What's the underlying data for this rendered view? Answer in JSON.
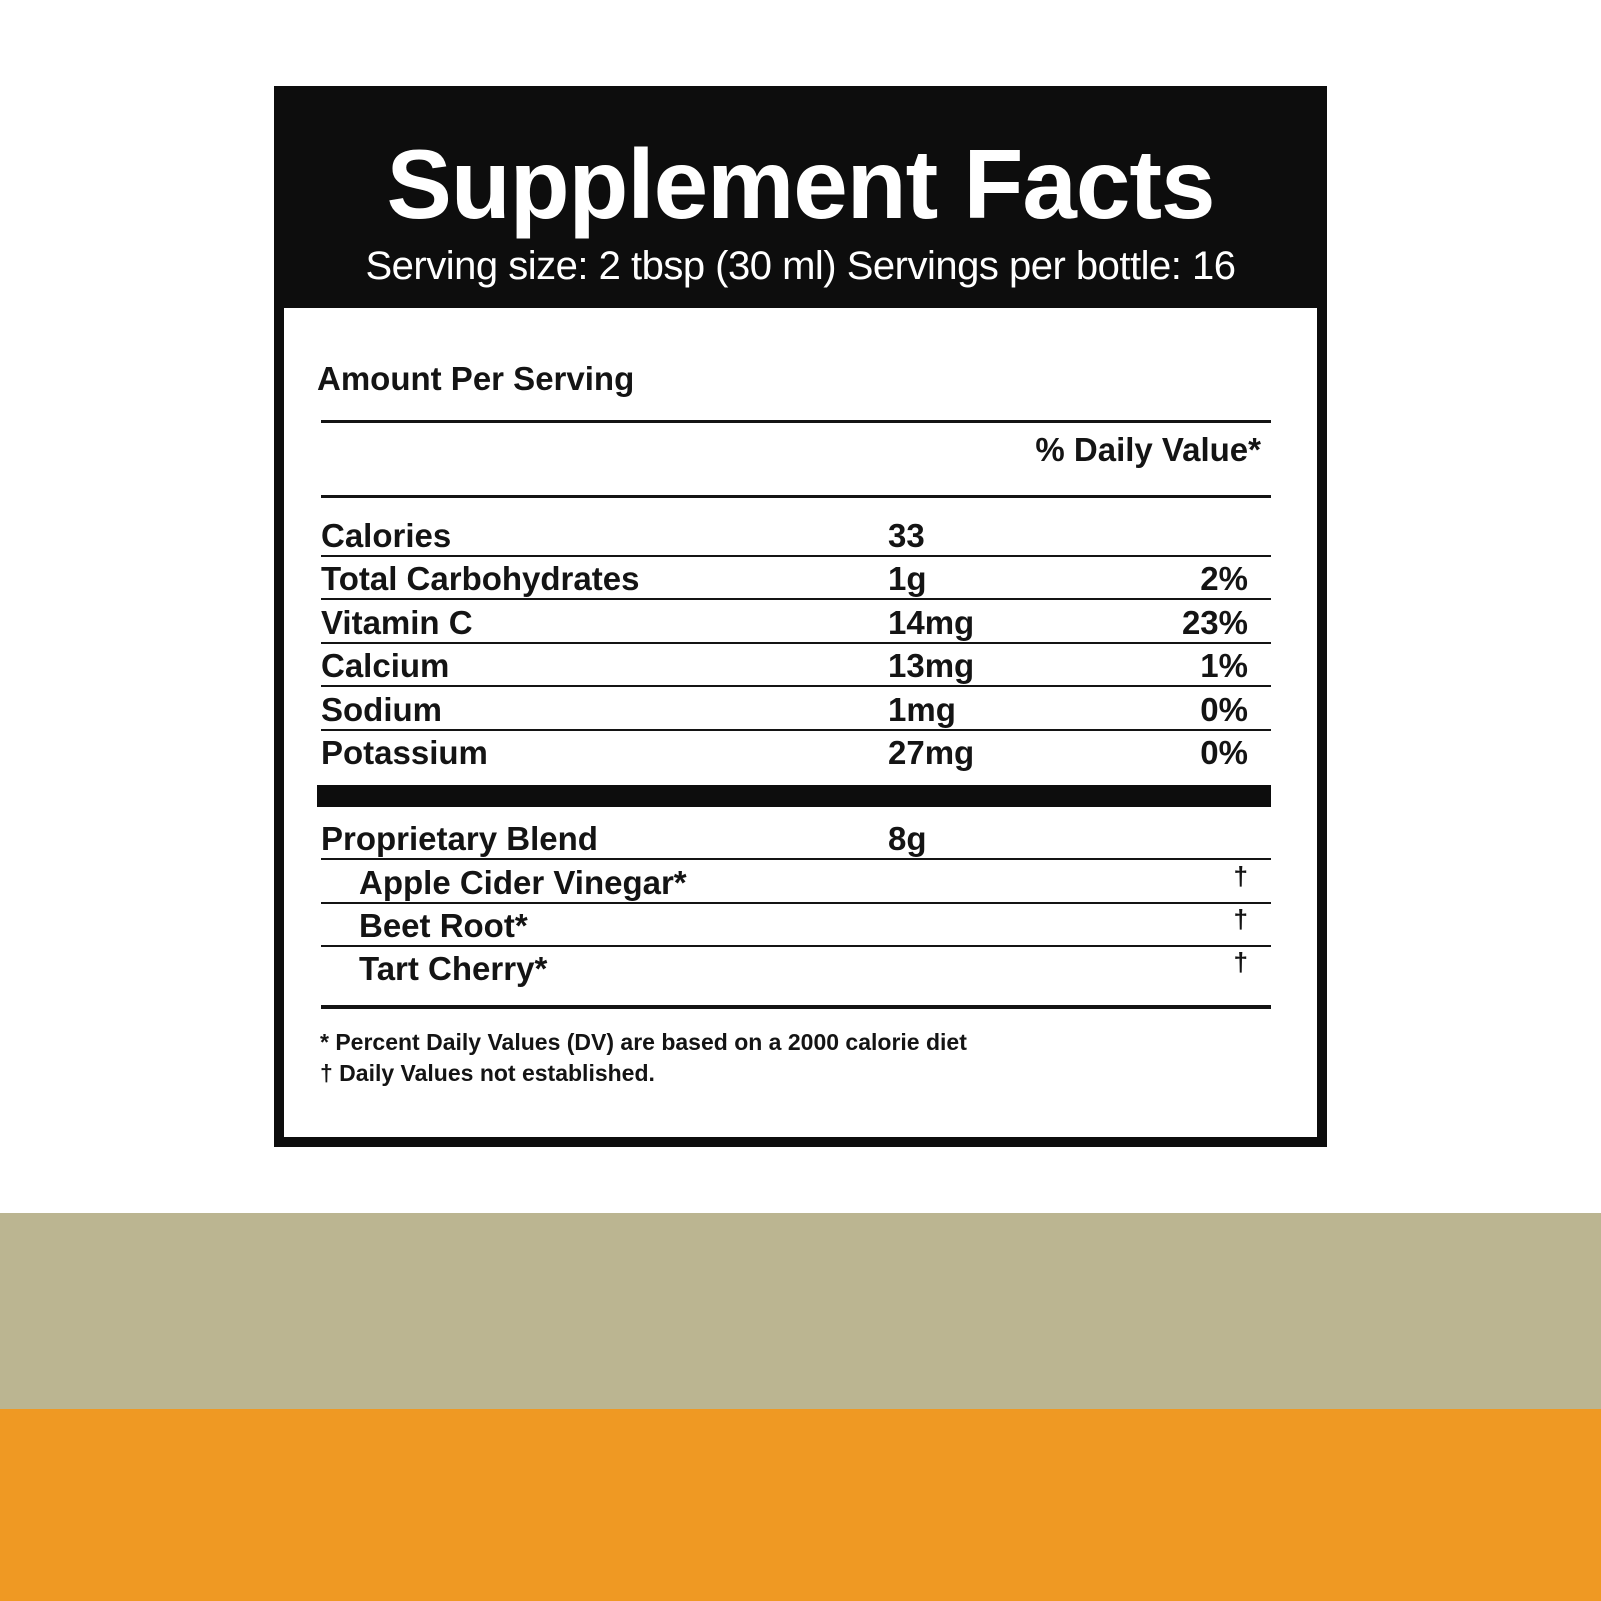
{
  "colors": {
    "olive_band": "#bbb591",
    "orange_band": "#ef9923",
    "panel_black": "#0d0d0d"
  },
  "label": {
    "title": "Supplement Facts",
    "subtitle": "Serving size: 2 tbsp (30 ml)  Servings per bottle: 16",
    "amount_per_serving": "Amount Per Serving",
    "dv_header": "% Daily Value*",
    "nutrients": [
      {
        "name": "Calories",
        "amount": "33",
        "dv": ""
      },
      {
        "name": "Total Carbohydrates",
        "amount": "1g",
        "dv": "2%"
      },
      {
        "name": "Vitamin C",
        "amount": "14mg",
        "dv": "23%"
      },
      {
        "name": "Calcium",
        "amount": "13mg",
        "dv": "1%"
      },
      {
        "name": "Sodium",
        "amount": "1mg",
        "dv": "0%"
      },
      {
        "name": "Potassium",
        "amount": "27mg",
        "dv": "0%"
      }
    ],
    "blend": {
      "name": "Proprietary Blend",
      "amount": "8g",
      "ingredients": [
        {
          "name": "Apple Cider Vinegar*",
          "dv": "†"
        },
        {
          "name": "Beet Root*",
          "dv": "†"
        },
        {
          "name": "Tart Cherry*",
          "dv": "†"
        }
      ]
    },
    "footnotes": [
      "* Percent Daily Values (DV) are based on a 2000 calorie diet",
      "† Daily Values not established."
    ]
  }
}
